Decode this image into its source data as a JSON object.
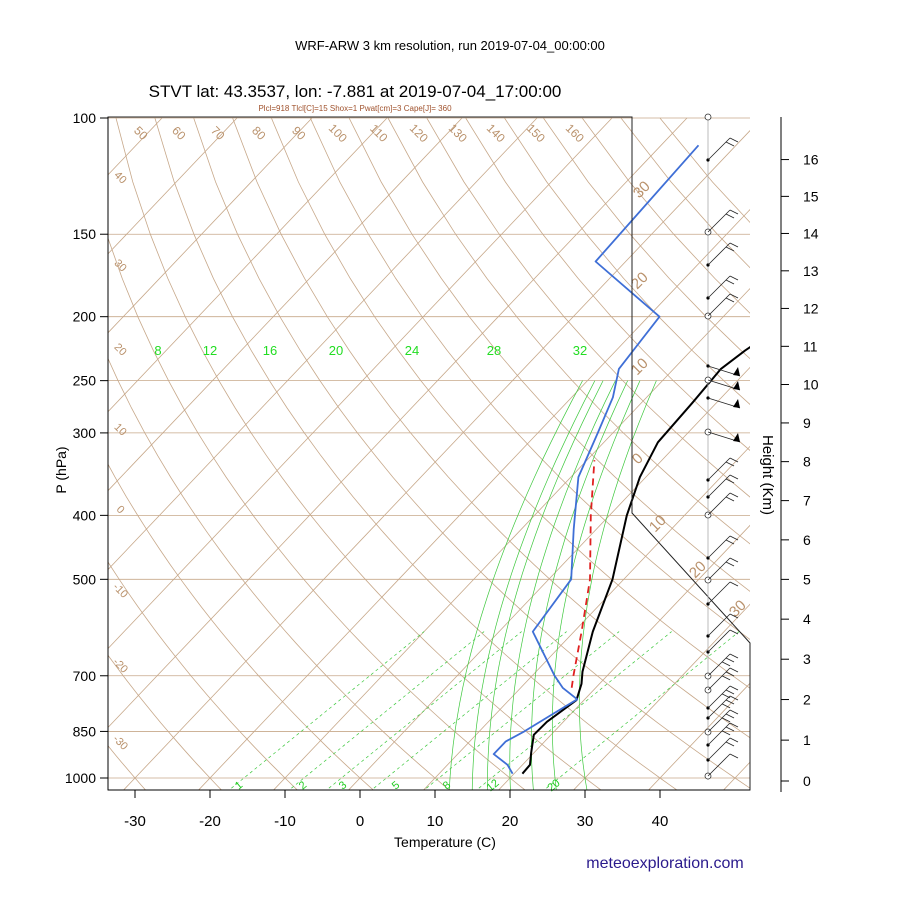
{
  "header": {
    "run_title": "WRF-ARW 3 km resolution, run 2019-07-04_00:00:00",
    "station_title": "STVT lat: 43.3537, lon: -7.881 at 2019-07-04_17:00:00",
    "indices_line": "Plcl=918 Tlcl[C]=15 Shox=1 Pwat[cm]=3 Cape[J]= 360"
  },
  "footer": {
    "credit": "meteoexploration.com"
  },
  "chart_data": {
    "type": "line",
    "subtype": "skew-T log-P sounding",
    "xlabel": "Temperature (C)",
    "ylabel": "P (hPa)",
    "right_axis_label": "Height (Km)",
    "pressure_range_hpa": [
      1050,
      100
    ],
    "temperature_range_c": [
      -33,
      48
    ],
    "x_ticks": [
      -30,
      -20,
      -10,
      0,
      10,
      20,
      30,
      40
    ],
    "pressure_ticks": [
      100,
      150,
      200,
      250,
      300,
      400,
      500,
      700,
      850,
      1000
    ],
    "height_ticks_km": [
      0,
      1,
      2,
      3,
      4,
      5,
      6,
      7,
      8,
      9,
      10,
      11,
      12,
      13,
      14,
      15,
      16
    ],
    "mixing_ratio_labels": [
      "8",
      "12",
      "16",
      "20",
      "24",
      "28",
      "32"
    ],
    "mixing_ratio_bottom_labels": [
      "1",
      "2",
      "3",
      "5",
      "8",
      "12",
      "20"
    ],
    "dry_adiabat_labels": [
      "50",
      "60",
      "70",
      "80",
      "90",
      "100",
      "110",
      "120",
      "130",
      "140",
      "150",
      "160"
    ],
    "left_edge_labels": [
      "40",
      "30",
      "20",
      "10",
      "0",
      "-10",
      "-20",
      "-30"
    ],
    "right_edge_labels": [
      "30",
      "20",
      "10",
      "0",
      "10",
      "20",
      "30"
    ],
    "series": [
      {
        "name": "temperature",
        "color": "#000000",
        "points": [
          {
            "p": 985,
            "t": 21.1
          },
          {
            "p": 955,
            "t": 21.0
          },
          {
            "p": 915,
            "t": 19.6
          },
          {
            "p": 860,
            "t": 17.7
          },
          {
            "p": 822,
            "t": 17.8
          },
          {
            "p": 762,
            "t": 19.0
          },
          {
            "p": 720,
            "t": 17.6
          },
          {
            "p": 690,
            "t": 16.2
          },
          {
            "p": 600,
            "t": 12.5
          },
          {
            "p": 500,
            "t": 8.5
          },
          {
            "p": 400,
            "t": 2.3
          },
          {
            "p": 350,
            "t": -0.8
          },
          {
            "p": 310,
            "t": -2.8
          },
          {
            "p": 270,
            "t": -3.2
          },
          {
            "p": 240,
            "t": -3.7
          },
          {
            "p": 225,
            "t": -2.8
          },
          {
            "p": 205,
            "t": -0.8
          },
          {
            "p": 180,
            "t": 2.3
          },
          {
            "p": 160,
            "t": 6.0
          },
          {
            "p": 142,
            "t": 10.0
          },
          {
            "p": 130,
            "t": 11.6
          },
          {
            "p": 115,
            "t": 12.4
          },
          {
            "p": 108,
            "t": 11.8
          }
        ]
      },
      {
        "name": "dewpoint",
        "color": "#3f6fd6",
        "points": [
          {
            "p": 985,
            "t": 19.8
          },
          {
            "p": 955,
            "t": 18.0
          },
          {
            "p": 920,
            "t": 14.8
          },
          {
            "p": 880,
            "t": 14.8
          },
          {
            "p": 850,
            "t": 16.0
          },
          {
            "p": 800,
            "t": 17.6
          },
          {
            "p": 760,
            "t": 19.0
          },
          {
            "p": 730,
            "t": 15.6
          },
          {
            "p": 700,
            "t": 13.0
          },
          {
            "p": 600,
            "t": 4.5
          },
          {
            "p": 500,
            "t": 3.0
          },
          {
            "p": 420,
            "t": -3.0
          },
          {
            "p": 350,
            "t": -9.0
          },
          {
            "p": 300,
            "t": -12.0
          },
          {
            "p": 265,
            "t": -14.5
          },
          {
            "p": 240,
            "t": -17.3
          },
          {
            "p": 200,
            "t": -18.5
          },
          {
            "p": 165,
            "t": -34.0
          },
          {
            "p": 110,
            "t": -35.0
          }
        ]
      },
      {
        "name": "parcel",
        "color": "#e02020",
        "dashed": true,
        "points": [
          {
            "p": 730,
            "t": 16.8
          },
          {
            "p": 700,
            "t": 15.5
          },
          {
            "p": 600,
            "t": 11.0
          },
          {
            "p": 500,
            "t": 5.5
          },
          {
            "p": 400,
            "t": -2.5
          },
          {
            "p": 330,
            "t": -9.0
          }
        ]
      }
    ]
  }
}
